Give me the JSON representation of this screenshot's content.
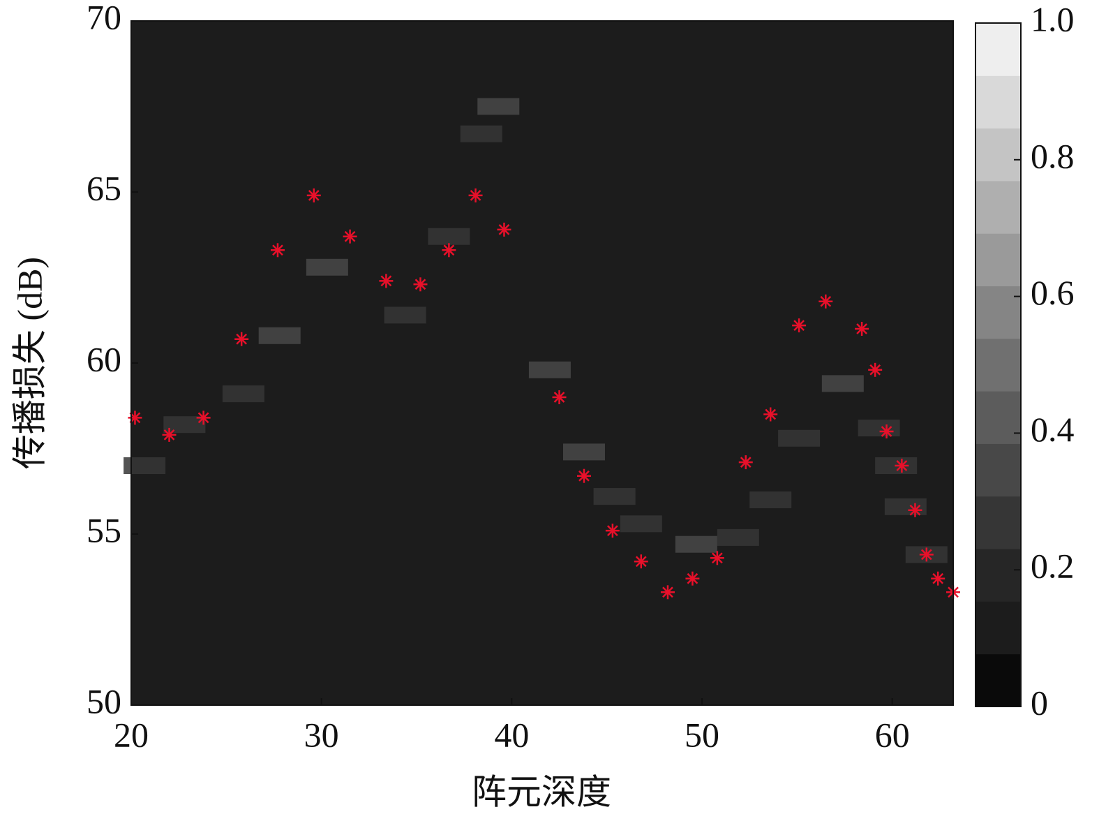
{
  "chart_data": {
    "type": "heatmap-scatter",
    "xlabel": "阵元深度",
    "ylabel": "传播损失 (dB)",
    "xlim": [
      20,
      63.2
    ],
    "ylim": [
      50,
      70
    ],
    "xticks": [
      20,
      30,
      40,
      50,
      60
    ],
    "yticks": [
      50,
      55,
      60,
      65,
      70
    ],
    "colorbar": {
      "lim": [
        0,
        1
      ],
      "ticks": [
        0,
        0.2,
        0.4,
        0.6,
        0.8,
        {
          "value": 1,
          "label": "1.0"
        }
      ],
      "colors": [
        "#0a0a0a",
        "#1c1c1c",
        "#262626",
        "#363636",
        "#484848",
        "#5c5c5c",
        "#707070",
        "#858585",
        "#9a9a9a",
        "#afafaf",
        "#c4c4c4",
        "#d9d9d9",
        "#eeeeee"
      ]
    },
    "background_value": 0.1,
    "heatmap": {
      "x": [
        20.7,
        22.8,
        25.9,
        27.8,
        30.3,
        34.4,
        36.7,
        39.3,
        38.4,
        42.0,
        43.8,
        45.4,
        46.8,
        49.7,
        51.9,
        53.6,
        55.1,
        57.4,
        59.3,
        60.2,
        60.7,
        61.8
      ],
      "y": [
        57.0,
        58.2,
        59.1,
        60.8,
        62.8,
        61.4,
        63.7,
        67.5,
        66.7,
        59.8,
        57.4,
        56.1,
        55.3,
        54.7,
        54.9,
        56.0,
        57.8,
        59.4,
        58.1,
        57.0,
        55.8,
        54.4
      ],
      "values": [
        0.3,
        0.3,
        0.3,
        0.35,
        0.35,
        0.3,
        0.25,
        0.35,
        0.3,
        0.35,
        0.35,
        0.3,
        0.3,
        0.35,
        0.3,
        0.3,
        0.3,
        0.35,
        0.3,
        0.3,
        0.3,
        0.3
      ]
    },
    "series": [
      {
        "color": "#e8102a",
        "x": [
          20.2,
          22.0,
          23.8,
          25.8,
          27.7,
          29.6,
          31.5,
          33.4,
          35.2,
          36.7,
          38.1,
          39.6,
          42.5,
          43.8,
          45.3,
          46.8,
          48.2,
          49.5,
          50.8,
          52.3,
          53.6,
          55.1,
          56.5,
          58.4,
          59.1,
          59.7,
          60.5,
          61.2,
          61.8,
          62.4,
          63.2
        ],
        "values": [
          58.4,
          57.9,
          58.4,
          60.7,
          63.3,
          64.9,
          63.7,
          62.4,
          62.3,
          63.3,
          64.9,
          63.9,
          59.0,
          56.7,
          55.1,
          54.2,
          53.3,
          53.7,
          54.3,
          57.1,
          58.5,
          61.1,
          61.8,
          61.0,
          59.8,
          58.0,
          57.0,
          55.7,
          54.4,
          53.7,
          53.3
        ]
      }
    ]
  }
}
